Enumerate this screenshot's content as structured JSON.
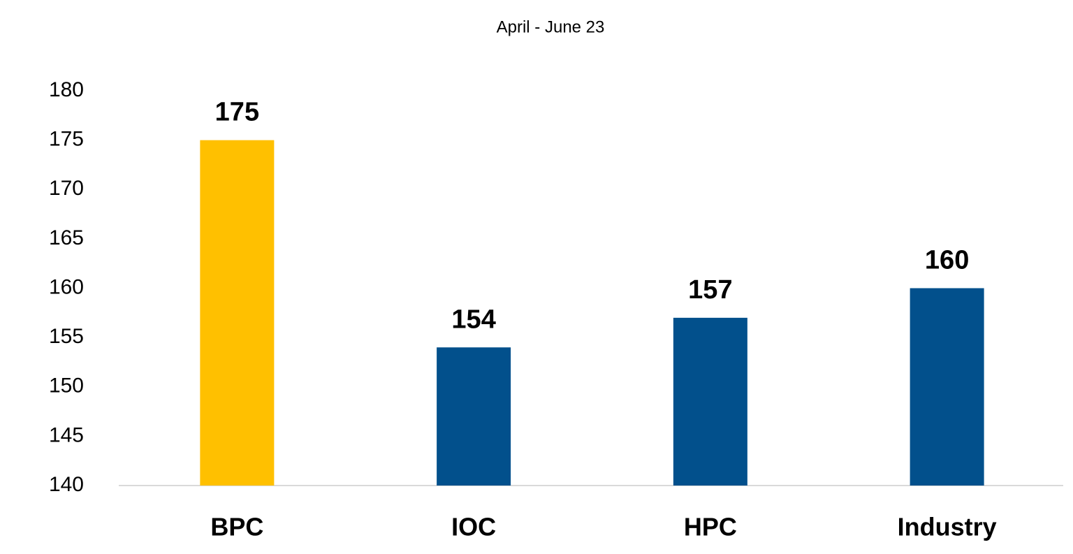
{
  "chart_data": {
    "type": "bar",
    "title": "April - June 23",
    "categories": [
      "BPC",
      "IOC",
      "HPC",
      "Industry"
    ],
    "values": [
      175,
      154,
      157,
      160
    ],
    "colors": [
      "#ffc000",
      "#02508c",
      "#02508c",
      "#02508c"
    ],
    "ylim": [
      140,
      180
    ],
    "yticks": [
      140,
      145,
      150,
      155,
      160,
      165,
      170,
      175,
      180
    ],
    "grid": false
  }
}
